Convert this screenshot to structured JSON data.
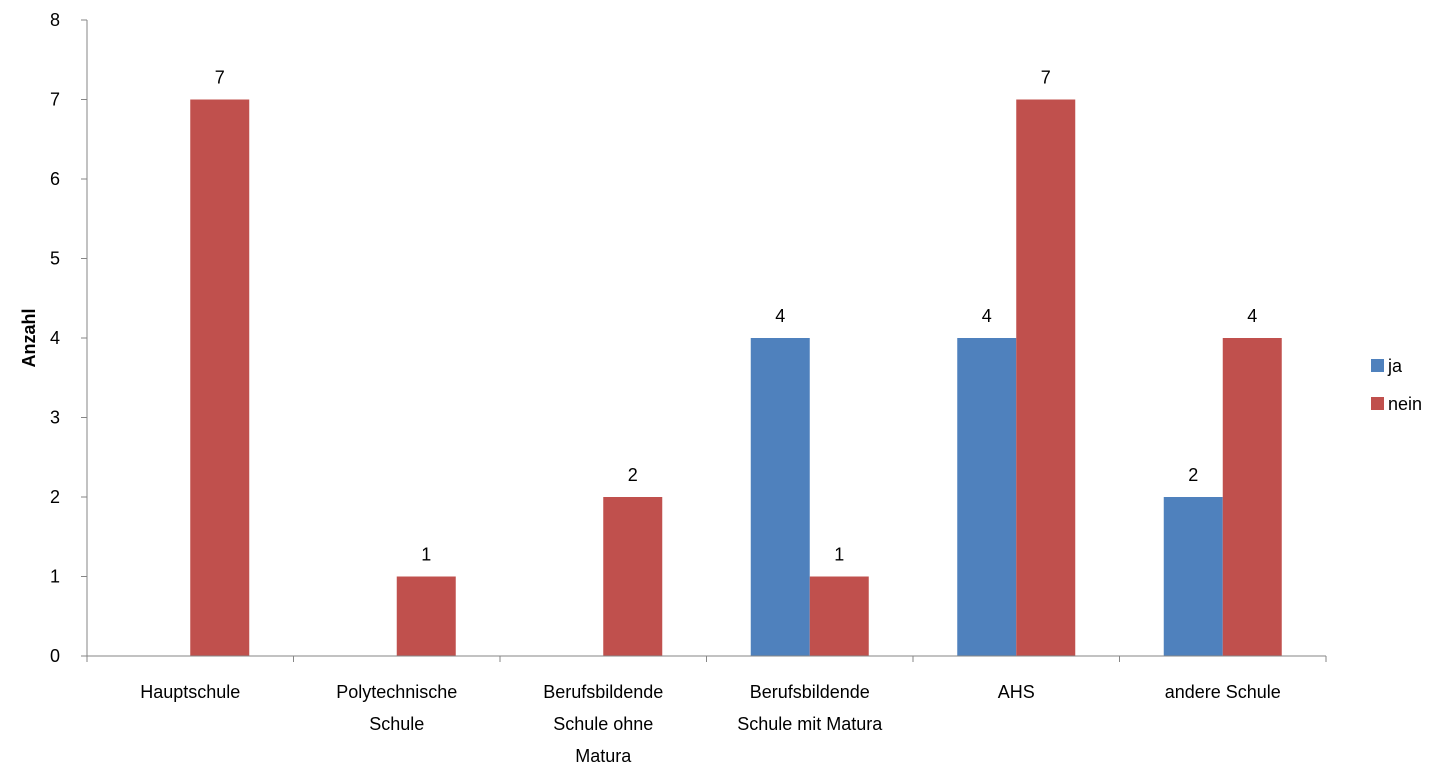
{
  "chart_data": {
    "type": "bar",
    "ylabel": "Anzahl",
    "xlabel": "",
    "ylim": [
      0,
      8
    ],
    "yticks": [
      0,
      1,
      2,
      3,
      4,
      5,
      6,
      7,
      8
    ],
    "grid": false,
    "legend_position": "right",
    "categories": [
      [
        "Hauptschule"
      ],
      [
        "Polytechnische",
        "Schule"
      ],
      [
        "Berufsbildende",
        "Schule ohne",
        "Matura"
      ],
      [
        "Berufsbildende",
        "Schule mit Matura"
      ],
      [
        "AHS"
      ],
      [
        "andere Schule"
      ]
    ],
    "series": [
      {
        "name": "ja",
        "color": "#4F81BD",
        "values": [
          0,
          0,
          0,
          4,
          4,
          2
        ]
      },
      {
        "name": "nein",
        "color": "#C0504D",
        "values": [
          7,
          1,
          2,
          1,
          7,
          4
        ]
      }
    ]
  }
}
